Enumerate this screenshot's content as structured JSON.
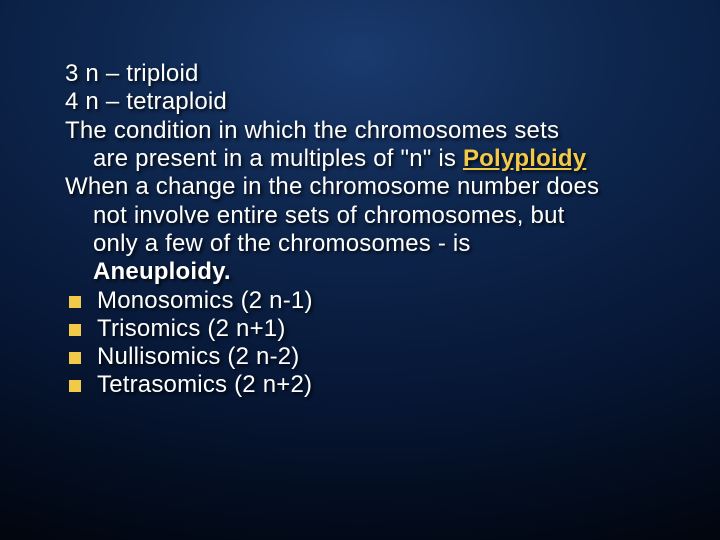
{
  "slide": {
    "background": {
      "gradient_center": "#1a3a6e",
      "gradient_mid": "#0f2850",
      "gradient_outer": "#071838",
      "gradient_edge": "#000000"
    },
    "text_color": "#ffffff",
    "highlight_color": "#f3c94a",
    "bullet_color": "#f3c94a",
    "font_family": "Comic Sans MS",
    "font_size_pt": 24,
    "lines": {
      "l1": "3 n – triploid",
      "l2": "4 n – tetraploid",
      "l3": "The condition in which the chromosomes sets",
      "l4": "are present in a multiples of \"n\" is ",
      "l4_hl": "Polyploidy",
      "l5": "When a change in the chromosome number does",
      "l6": "not involve entire sets of chromosomes, but",
      "l7": "only a few of the chromosomes -  is",
      "l8": "Aneuploidy.",
      "b1": "Monosomics (2 n-1)",
      "b2": "Trisomics (2 n+1)",
      "b3": "Nullisomics (2 n-2)",
      "b4": "Tetrasomics (2 n+2)"
    }
  }
}
